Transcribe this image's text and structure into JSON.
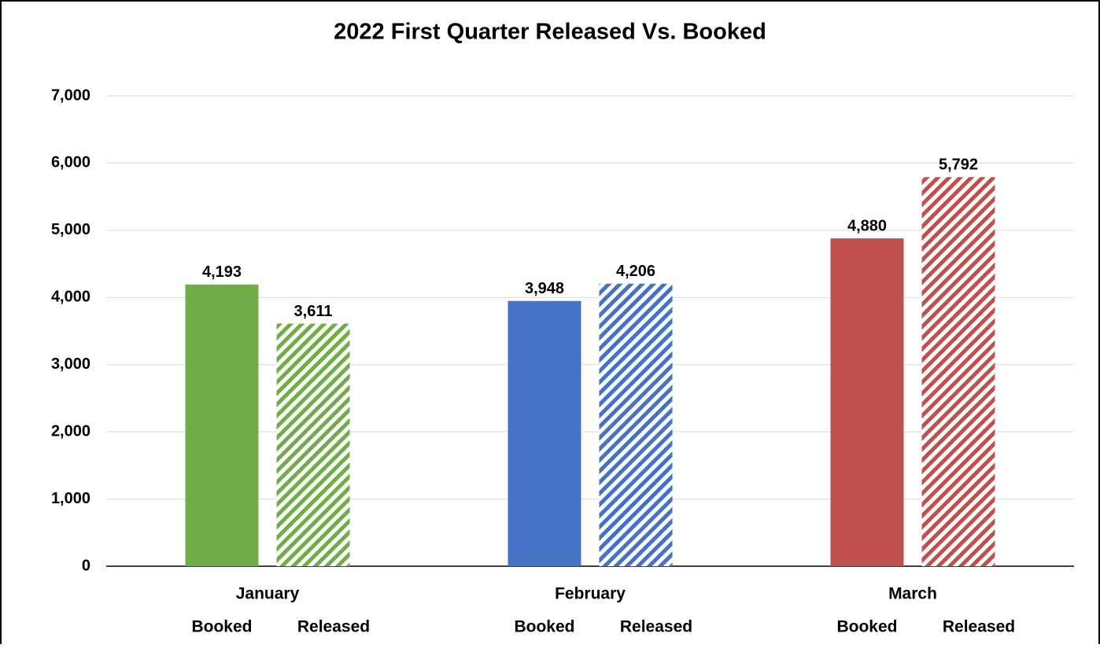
{
  "chart_data": {
    "type": "bar",
    "title": "2022 First Quarter Released Vs. Booked",
    "categories": [
      "January",
      "February",
      "March"
    ],
    "category_colors": [
      "#70ad47",
      "#4472c4",
      "#c0504d"
    ],
    "series": [
      {
        "name": "Booked",
        "pattern": "solid",
        "values": [
          4193,
          3948,
          4880
        ],
        "value_labels": [
          "4,193",
          "3,948",
          "4,880"
        ]
      },
      {
        "name": "Released",
        "pattern": "hatched",
        "values": [
          3611,
          4206,
          5792
        ],
        "value_labels": [
          "3,611",
          "4,206",
          "5,792"
        ]
      }
    ],
    "ylim": [
      0,
      7000
    ],
    "yticks": [
      0,
      {
        "value": 1000,
        "label": "1,000"
      },
      {
        "value": 2000,
        "label": "2,000"
      },
      {
        "value": 3000,
        "label": "3,000"
      },
      {
        "value": 4000,
        "label": "4,000"
      },
      {
        "value": 5000,
        "label": "5,000"
      },
      {
        "value": 6000,
        "label": "6,000"
      },
      {
        "value": 7000,
        "label": "7,000"
      }
    ],
    "grid": true
  }
}
